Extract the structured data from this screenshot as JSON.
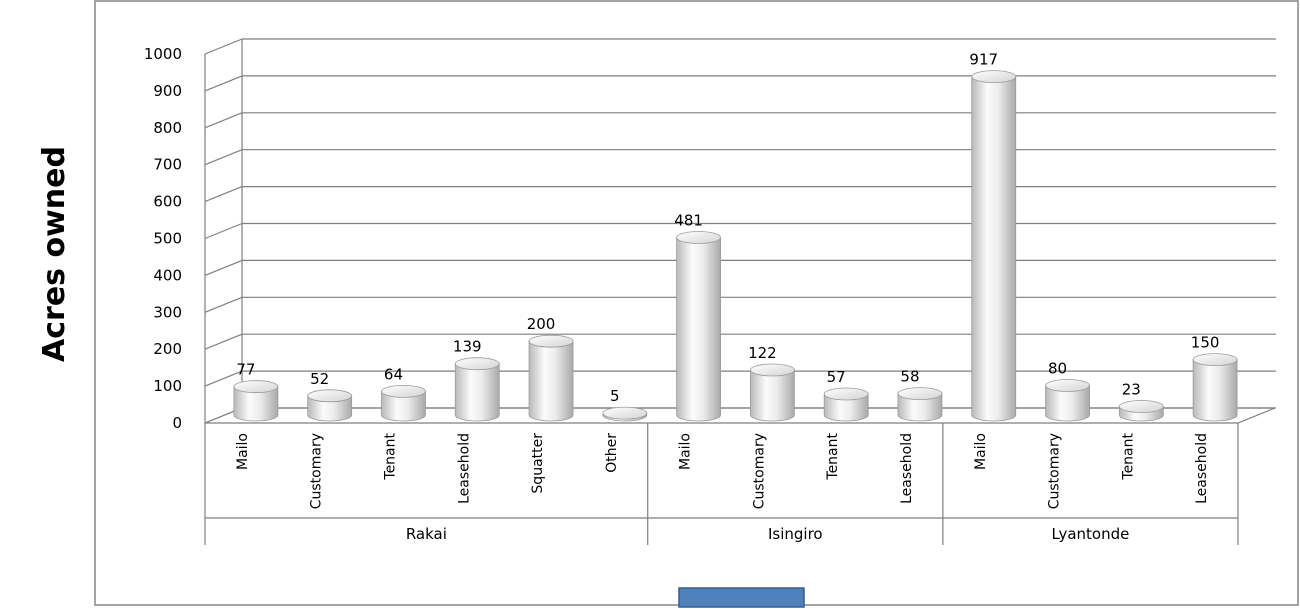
{
  "chart_data": {
    "type": "bar",
    "style": "3d-cylinder",
    "ylabel": "Acres owned",
    "ylim": [
      0,
      1000
    ],
    "yticks": [
      "0",
      "100",
      "200",
      "300",
      "400",
      "500",
      "600",
      "700",
      "800",
      "900",
      "1000"
    ],
    "grid": true,
    "legend": "bottom-center",
    "colors": {
      "bar": "#e6e6e6",
      "grid": "#7f7f7f",
      "legend_swatch": "#4f81bd"
    },
    "groups": [
      {
        "name": "Rakai",
        "categories": [
          "Mailo",
          "Customary",
          "Tenant",
          "Leasehold",
          "Squatter",
          "Other"
        ],
        "values": [
          77,
          52,
          64,
          139,
          200,
          5
        ]
      },
      {
        "name": "Isingiro",
        "categories": [
          "Mailo",
          "Customary",
          "Tenant",
          "Leasehold"
        ],
        "values": [
          481,
          122,
          57,
          58
        ]
      },
      {
        "name": "Lyantonde",
        "categories": [
          "Mailo",
          "Customary",
          "Tenant",
          "Leasehold"
        ],
        "values": [
          917,
          80,
          23,
          150
        ]
      }
    ]
  }
}
